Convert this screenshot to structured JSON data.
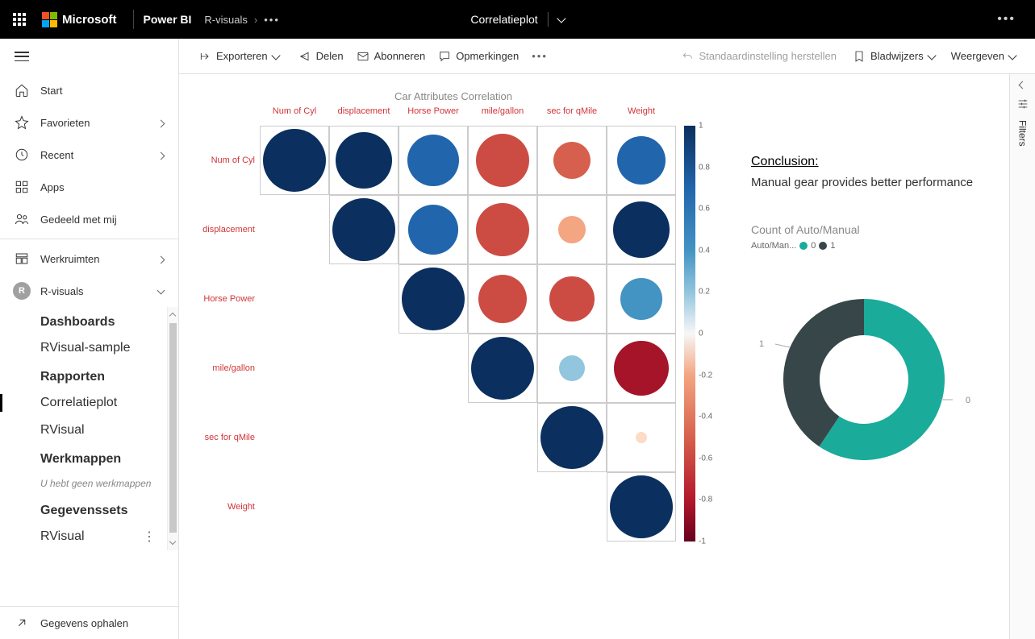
{
  "header": {
    "microsoft": "Microsoft",
    "product": "Power BI",
    "breadcrumb_workspace": "R-visuals",
    "page_title": "Correlatieplot"
  },
  "sidebar": {
    "home": "Start",
    "favorites": "Favorieten",
    "recent": "Recent",
    "apps": "Apps",
    "shared": "Gedeeld met mij",
    "workspaces": "Werkruimten",
    "current_ws_initial": "R",
    "current_ws": "R-visuals",
    "sections": {
      "dashboards": "Dashboards",
      "dashboards_items": [
        "RVisual-sample"
      ],
      "reports": "Rapporten",
      "reports_items": [
        "Correlatieplot",
        "RVisual"
      ],
      "workbooks": "Werkmappen",
      "workbooks_empty": "U hebt geen werkmappen",
      "datasets": "Gegevenssets",
      "datasets_items": [
        "RVisual"
      ]
    },
    "get_data": "Gegevens ophalen"
  },
  "actionbar": {
    "export": "Exporteren",
    "share": "Delen",
    "subscribe": "Abonneren",
    "comments": "Opmerkingen",
    "reset": "Standaardinstelling herstellen",
    "bookmarks": "Bladwijzers",
    "view": "Weergeven"
  },
  "filters_label": "Filters",
  "correlation": {
    "title": "Car Attributes Correlation",
    "variables": [
      "Num of Cyl",
      "displacement",
      "Horse Power",
      "mile/gallon",
      "sec for qMile",
      "Weight"
    ],
    "matrix": [
      [
        1.0,
        0.9,
        0.83,
        -0.85,
        -0.59,
        0.78
      ],
      [
        null,
        1.0,
        0.79,
        -0.85,
        -0.43,
        0.89
      ],
      [
        null,
        null,
        1.0,
        -0.78,
        -0.71,
        0.66
      ],
      [
        null,
        null,
        null,
        1.0,
        0.42,
        -0.87
      ],
      [
        null,
        null,
        null,
        null,
        1.0,
        -0.17
      ],
      [
        null,
        null,
        null,
        null,
        null,
        1.0
      ]
    ],
    "color_pos_strong": "#0b2f5e",
    "color_pos_med": "#2166ac",
    "color_pos_light": "#4393c3",
    "color_pos_vlight": "#92c5de",
    "color_neutral": "#fddbc7",
    "color_neg_vlight": "#f4a582",
    "color_neg_light": "#d6604d",
    "color_neg_med": "#cc4c43",
    "color_neg_strong": "#a51429",
    "scale_ticks": [
      "1",
      "0.8",
      "0.6",
      "0.4",
      "0.2",
      "0",
      "-0.2",
      "-0.4",
      "-0.6",
      "-0.8",
      "-1"
    ],
    "cell_size": 86,
    "max_circle": 78
  },
  "conclusion": {
    "heading": "Conclusion:",
    "text": "Manual gear provides better performance"
  },
  "donut": {
    "title": "Count of Auto/Manual",
    "legend_label": "Auto/Man...",
    "series": [
      {
        "label": "0",
        "value": 19,
        "color": "#1aab9b"
      },
      {
        "label": "1",
        "value": 13,
        "color": "#374649"
      }
    ],
    "inner_radius_ratio": 0.55
  }
}
